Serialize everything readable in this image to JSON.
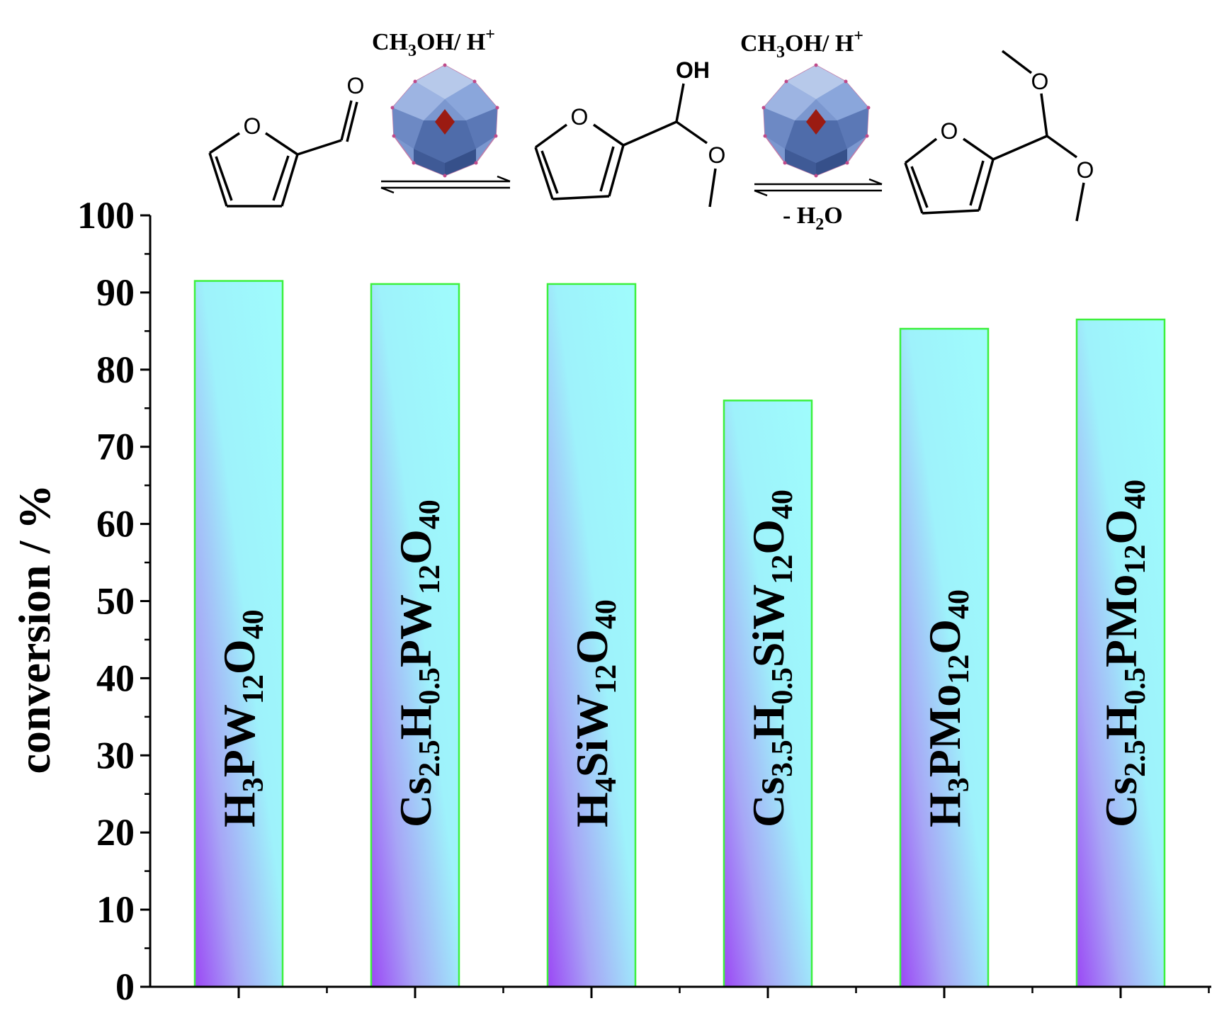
{
  "chart_data": {
    "type": "bar",
    "categories": [
      {
        "id": "H3PW12O40",
        "parts": [
          [
            "H",
            ""
          ],
          [
            "3",
            "sub"
          ],
          [
            "PW",
            ""
          ],
          [
            "12",
            "sub"
          ],
          [
            "O",
            ""
          ],
          [
            "40",
            "sub"
          ]
        ]
      },
      {
        "id": "Cs2.5H0.5PW12O40",
        "parts": [
          [
            "Cs",
            ""
          ],
          [
            "2.5",
            "sub"
          ],
          [
            "H",
            ""
          ],
          [
            "0.5",
            "sub"
          ],
          [
            "PW",
            ""
          ],
          [
            "12",
            "sub"
          ],
          [
            "O",
            ""
          ],
          [
            "40",
            "sub"
          ]
        ]
      },
      {
        "id": "H4SiW12O40",
        "parts": [
          [
            "H",
            ""
          ],
          [
            "4",
            "sub"
          ],
          [
            "SiW",
            ""
          ],
          [
            "12",
            "sub"
          ],
          [
            "O",
            ""
          ],
          [
            "40",
            "sub"
          ]
        ]
      },
      {
        "id": "Cs3.5H0.5SiW12O40",
        "parts": [
          [
            "Cs",
            ""
          ],
          [
            "3.5",
            "sub"
          ],
          [
            "H",
            ""
          ],
          [
            "0.5",
            "sub"
          ],
          [
            "SiW",
            ""
          ],
          [
            "12",
            "sub"
          ],
          [
            "O",
            ""
          ],
          [
            "40",
            "sub"
          ]
        ]
      },
      {
        "id": "H3PMo12O40",
        "parts": [
          [
            "H",
            ""
          ],
          [
            "3",
            "sub"
          ],
          [
            "PMo",
            ""
          ],
          [
            "12",
            "sub"
          ],
          [
            "O",
            ""
          ],
          [
            "40",
            "sub"
          ]
        ]
      },
      {
        "id": "Cs2.5H0.5PMo12O40",
        "parts": [
          [
            "Cs",
            ""
          ],
          [
            "2.5",
            "sub"
          ],
          [
            "H",
            ""
          ],
          [
            "0.5",
            "sub"
          ],
          [
            "PMo",
            ""
          ],
          [
            "12",
            "sub"
          ],
          [
            "O",
            ""
          ],
          [
            "40",
            "sub"
          ]
        ]
      }
    ],
    "values": [
      91.5,
      91.1,
      91.1,
      76.0,
      85.3,
      86.5
    ],
    "ylabel": "conversion / %",
    "ylim": [
      0,
      100
    ],
    "yticks": [
      "0",
      "10",
      "20",
      "30",
      "40",
      "50",
      "60",
      "70",
      "80",
      "90",
      "100"
    ],
    "grid": false,
    "colors": {
      "bar_light": "#9ffcfc",
      "bar_dark": "#9b47f5",
      "bar_border": "#3df03d"
    }
  },
  "scheme": {
    "reagent_left": {
      "main": "CH",
      "sub": "3",
      "rest": "OH/ H",
      "sup": "+"
    },
    "reagent_right": {
      "main": "CH",
      "sub": "3",
      "rest": "OH/ H",
      "sup": "+"
    },
    "byproduct": {
      "pre": "- H",
      "sub": "2",
      "post": "O"
    },
    "atoms": {
      "oxygen": "O",
      "hydroxyl": "OH"
    },
    "colors": {
      "polyhedra": "#6f8fc9",
      "core": "#9b1b12"
    }
  }
}
